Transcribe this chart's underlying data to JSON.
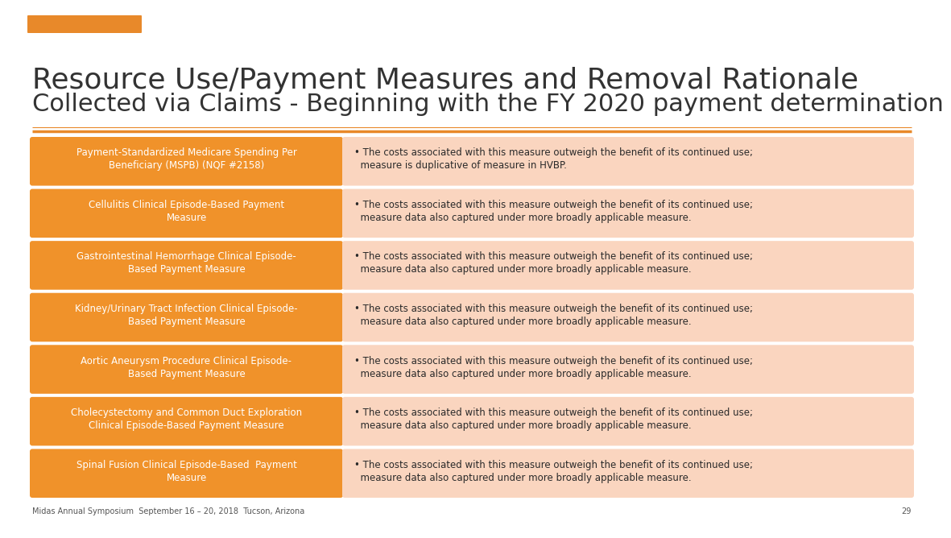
{
  "title_line1": "Resource Use/Payment Measures and Removal Rationale",
  "title_line2": "Collected via Claims - Beginning with the FY 2020 payment determination",
  "background_color": "#FFFFFF",
  "title_color": "#333333",
  "orange_accent": "#E8892A",
  "left_box_color": "#F0922A",
  "right_box_color": "#FAD5BF",
  "footer_text": "Midas Annual Symposium  September 16 – 20, 2018  Tucson, Arizona",
  "page_number": "29",
  "title1_fontsize": 26,
  "title2_fontsize": 22,
  "row_fontsize": 8.5,
  "rows": [
    {
      "left": "Payment-Standardized Medicare Spending Per\nBeneficiary (MSPB) (NQF #2158)",
      "right": "• The costs associated with this measure outweigh the benefit of its continued use;\n  measure is duplicative of measure in HVBP."
    },
    {
      "left": "Cellulitis Clinical Episode-Based Payment\nMeasure",
      "right": "• The costs associated with this measure outweigh the benefit of its continued use;\n  measure data also captured under more broadly applicable measure."
    },
    {
      "left": "Gastrointestinal Hemorrhage Clinical Episode-\nBased Payment Measure",
      "right": "• The costs associated with this measure outweigh the benefit of its continued use;\n  measure data also captured under more broadly applicable measure."
    },
    {
      "left": "Kidney/Urinary Tract Infection Clinical Episode-\nBased Payment Measure",
      "right": "• The costs associated with this measure outweigh the benefit of its continued use;\n  measure data also captured under more broadly applicable measure."
    },
    {
      "left": "Aortic Aneurysm Procedure Clinical Episode-\nBased Payment Measure",
      "right": "• The costs associated with this measure outweigh the benefit of its continued use;\n  measure data also captured under more broadly applicable measure."
    },
    {
      "left": "Cholecystectomy and Common Duct Exploration\nClinical Episode-Based Payment Measure",
      "right": "• The costs associated with this measure outweigh the benefit of its continued use;\n  measure data also captured under more broadly applicable measure."
    },
    {
      "left": "Spinal Fusion Clinical Episode-Based  Payment\nMeasure",
      "right": "• The costs associated with this measure outweigh the benefit of its continued use;\n  measure data also captured under more broadly applicable measure."
    }
  ]
}
